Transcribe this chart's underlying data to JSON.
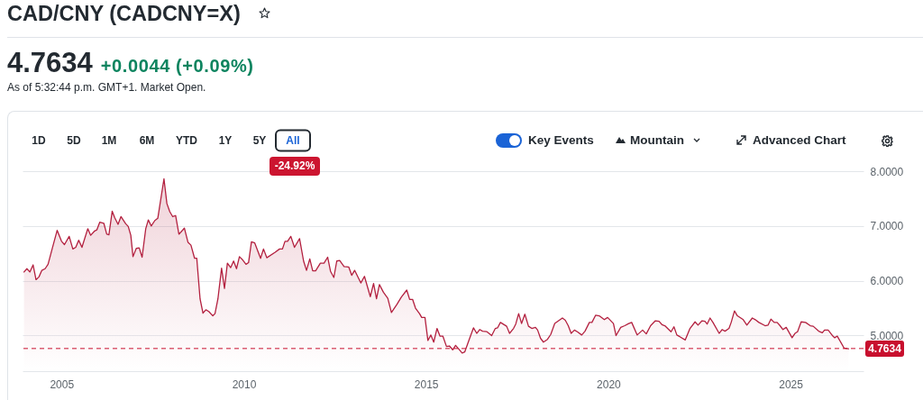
{
  "chart_data": {
    "type": "area",
    "title": "CAD/CNY (CADCNY=X)",
    "subtitle": "4.7634",
    "annotations": [
      "+0.0044 (+0.09%)",
      "As of 5:32:44 p.m. GMT+1. Market Open.",
      "1D",
      "5D",
      "1M",
      "6M",
      "YTD",
      "1Y",
      "5Y",
      "All",
      "-24.92%",
      "Key Events",
      "Mountain",
      "Advanced Chart"
    ],
    "x": [
      2003.97,
      2004.05,
      2004.13,
      2004.22,
      2004.3,
      2004.38,
      2004.46,
      2004.55,
      2004.63,
      2004.75,
      2004.88,
      2005.0,
      2005.08,
      2005.21,
      2005.31,
      2005.39,
      2005.47,
      2005.56,
      2005.72,
      2005.8,
      2005.91,
      2005.97,
      2006.05,
      2006.16,
      2006.24,
      2006.3,
      2006.39,
      2006.46,
      2006.55,
      2006.63,
      2006.76,
      2006.83,
      2006.9,
      2006.96,
      2007.05,
      2007.13,
      2007.21,
      2007.31,
      2007.38,
      2007.46,
      2007.56,
      2007.64,
      2007.81,
      2007.89,
      2007.97,
      2008.05,
      2008.13,
      2008.22,
      2008.37,
      2008.47,
      2008.55,
      2008.65,
      2008.71,
      2008.8,
      2008.88,
      2008.96,
      2009.04,
      2009.15,
      2009.21,
      2009.29,
      2009.39,
      2009.47,
      2009.55,
      2009.64,
      2009.72,
      2009.8,
      2009.88,
      2009.97,
      2010.06,
      2010.13,
      2010.21,
      2010.3,
      2010.46,
      2010.54,
      2010.63,
      2010.86,
      2010.98,
      2011.06,
      2011.13,
      2011.2,
      2011.29,
      2011.39,
      2011.53,
      2011.64,
      2011.72,
      2011.81,
      2011.89,
      2011.97,
      2012.1,
      2012.2,
      2012.3,
      2012.38,
      2012.47,
      2012.55,
      2012.63,
      2012.75,
      2012.88,
      2012.96,
      2013.04,
      2013.21,
      2013.31,
      2013.47,
      2013.56,
      2013.64,
      2013.72,
      2013.83,
      2013.95,
      2014.05,
      2014.2,
      2014.32,
      2014.47,
      2014.55,
      2014.63,
      2014.71,
      2014.82,
      2014.88,
      2014.97,
      2015.05,
      2015.13,
      2015.21,
      2015.3,
      2015.38,
      2015.46,
      2015.56,
      2015.64,
      2015.73,
      2015.81,
      2015.89,
      2015.99,
      2016.06,
      2016.18,
      2016.3,
      2016.39,
      2016.47,
      2016.55,
      2016.67,
      2016.8,
      2016.9,
      2016.96,
      2017.04,
      2017.21,
      2017.29,
      2017.4,
      2017.46,
      2017.54,
      2017.62,
      2017.71,
      2017.81,
      2017.9,
      2018.0,
      2018.06,
      2018.14,
      2018.22,
      2018.33,
      2018.42,
      2018.53,
      2018.74,
      2018.82,
      2018.9,
      2018.98,
      2019.07,
      2019.15,
      2019.27,
      2019.36,
      2019.48,
      2019.55,
      2019.65,
      2019.75,
      2019.89,
      2019.98,
      2020.14,
      2020.21,
      2020.34,
      2020.45,
      2020.56,
      2020.64,
      2020.79,
      2020.94,
      2021.04,
      2021.16,
      2021.29,
      2021.39,
      2021.47,
      2021.55,
      2021.72,
      2021.8,
      2021.88,
      2021.96,
      2022.11,
      2022.24,
      2022.38,
      2022.46,
      2022.57,
      2022.65,
      2022.71,
      2022.79,
      2022.87,
      2023.04,
      2023.12,
      2023.2,
      2023.31,
      2023.37,
      2023.46,
      2023.54,
      2023.7,
      2023.8,
      2023.95,
      2024.03,
      2024.13,
      2024.3,
      2024.38,
      2024.46,
      2024.55,
      2024.63,
      2024.71,
      2024.79,
      2024.88,
      2025.04,
      2025.12,
      2025.19,
      2025.29,
      2025.41,
      2025.54,
      2025.62,
      2025.77,
      2025.87,
      2025.93,
      2026.03,
      2026.16,
      2026.21,
      2026.28,
      2026.47,
      2026.59
    ],
    "series": [
      {
        "color": "#b3203f",
        "values": [
          6.16,
          6.22,
          6.16,
          6.29,
          6.02,
          6.07,
          6.19,
          6.22,
          6.3,
          6.6,
          6.92,
          6.72,
          6.66,
          6.81,
          6.58,
          6.61,
          6.74,
          6.61,
          6.95,
          6.83,
          6.91,
          6.93,
          7.07,
          7.05,
          6.85,
          6.84,
          7.27,
          7.15,
          7.03,
          7.17,
          7.04,
          6.99,
          6.83,
          6.44,
          6.59,
          6.6,
          6.43,
          6.95,
          7.11,
          7.0,
          7.1,
          7.14,
          7.86,
          7.41,
          7.26,
          7.17,
          7.19,
          6.85,
          6.96,
          6.7,
          6.65,
          6.41,
          6.41,
          5.67,
          5.41,
          5.47,
          5.44,
          5.36,
          5.4,
          5.67,
          6.23,
          5.86,
          6.32,
          6.24,
          6.36,
          6.22,
          6.44,
          6.38,
          6.3,
          6.33,
          6.71,
          6.69,
          6.41,
          6.58,
          6.42,
          6.52,
          6.58,
          6.58,
          6.72,
          6.72,
          6.81,
          6.61,
          6.77,
          6.36,
          6.19,
          6.4,
          6.18,
          6.18,
          6.32,
          6.32,
          6.43,
          6.17,
          6.06,
          6.36,
          6.37,
          6.26,
          6.25,
          6.1,
          6.19,
          5.96,
          6.08,
          5.71,
          5.95,
          5.67,
          5.93,
          5.79,
          5.68,
          5.42,
          5.57,
          5.7,
          5.83,
          5.66,
          5.66,
          5.5,
          5.4,
          5.33,
          5.33,
          4.91,
          5.01,
          4.88,
          5.13,
          4.99,
          4.99,
          4.8,
          4.81,
          4.74,
          4.82,
          4.76,
          4.68,
          4.7,
          4.92,
          5.14,
          5.04,
          5.11,
          5.08,
          5.07,
          5.0,
          5.13,
          5.14,
          5.24,
          5.17,
          5.04,
          5.13,
          5.21,
          5.4,
          5.22,
          5.39,
          5.17,
          5.13,
          5.15,
          5.1,
          4.95,
          4.88,
          4.93,
          5.02,
          5.22,
          5.32,
          5.28,
          5.18,
          5.04,
          5.1,
          5.07,
          5.01,
          5.08,
          5.24,
          5.24,
          5.37,
          5.36,
          5.29,
          5.33,
          5.22,
          5.0,
          5.15,
          5.18,
          5.22,
          5.24,
          5.01,
          5.1,
          5.03,
          5.18,
          5.27,
          5.26,
          5.2,
          5.18,
          5.07,
          5.16,
          5.01,
          4.98,
          4.92,
          5.13,
          5.25,
          5.19,
          5.27,
          5.26,
          5.21,
          5.32,
          5.24,
          5.04,
          5.11,
          5.08,
          5.13,
          5.24,
          5.45,
          5.36,
          5.29,
          5.19,
          5.32,
          5.29,
          5.24,
          5.18,
          5.19,
          5.3,
          5.24,
          5.24,
          5.18,
          5.11,
          5.15,
          4.96,
          5.04,
          5.07,
          5.25,
          5.24,
          5.18,
          5.17,
          5.08,
          5.05,
          5.1,
          5.1,
          4.99,
          4.96,
          4.99,
          4.77,
          4.76
        ]
      }
    ],
    "xlim": [
      2003.93,
      2027.0
    ],
    "xticks": [
      2005,
      2010,
      2015,
      2020,
      2025
    ],
    "ylim": [
      4.35,
      8.0
    ],
    "yticks": [
      {
        "value": 5,
        "label": "5.0000"
      },
      {
        "value": 6,
        "label": "6.0000"
      },
      {
        "value": 7,
        "label": "7.0000"
      },
      {
        "value": 8,
        "label": "8.0000"
      }
    ],
    "grid": "y",
    "ref_lines": [
      {
        "axis": "y",
        "value": 4.7634,
        "label": "4.7634",
        "color": "#c8102e",
        "line_style": "dashed"
      }
    ]
  }
}
